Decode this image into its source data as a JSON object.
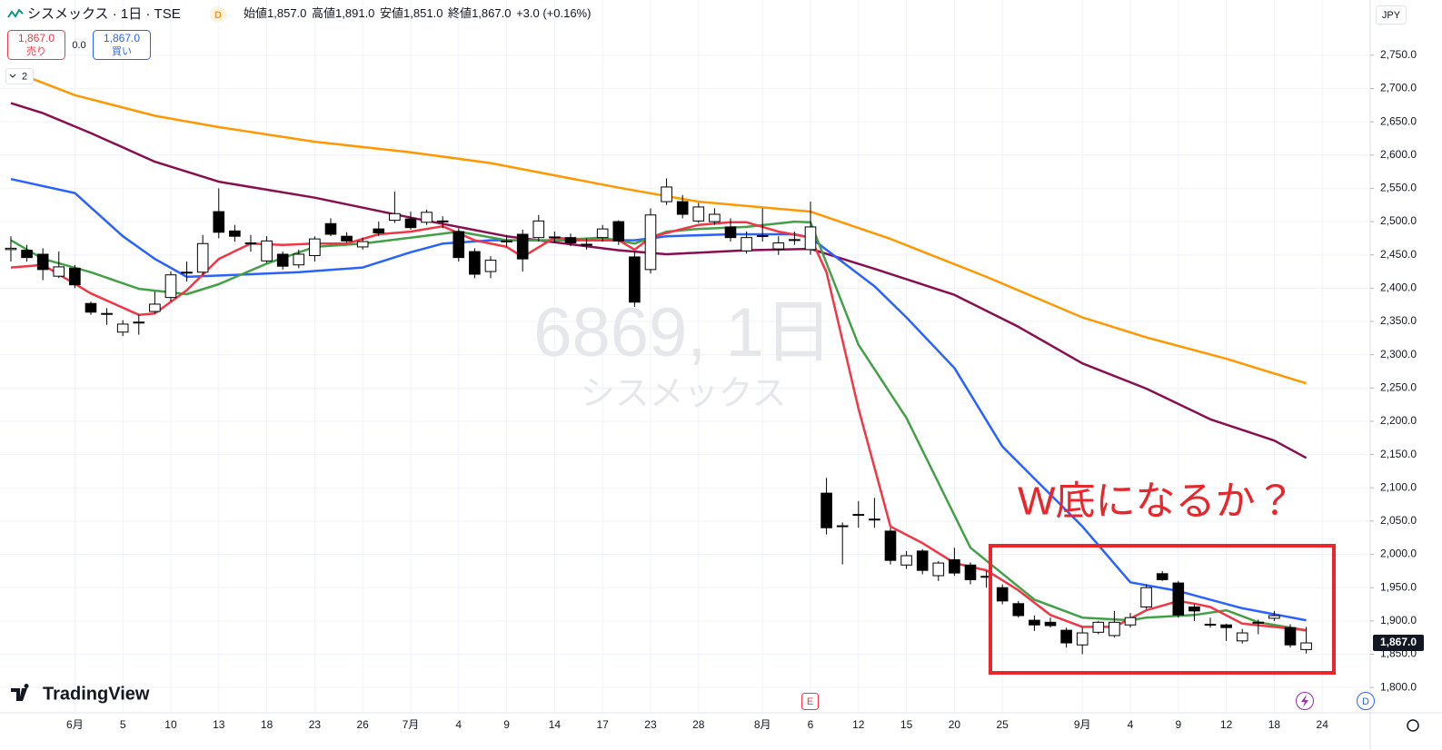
{
  "header": {
    "symbol": "シスメックス · 1日 · TSE",
    "badge": "D",
    "ohlc": [
      {
        "label": "始値",
        "value": "1,857.0"
      },
      {
        "label": "高値",
        "value": "1,891.0"
      },
      {
        "label": "安値",
        "value": "1,851.0"
      },
      {
        "label": "終値",
        "value": "1,867.0"
      }
    ],
    "change": "+3.0 (+0.16%)"
  },
  "trade": {
    "sell_price": "1,867.0",
    "sell": "売り",
    "spread": "0.0",
    "buy_price": "1,867.0",
    "buy": "買い"
  },
  "indicators_toggle": "2",
  "currency": "JPY",
  "watermark": {
    "symbol": "6869, 1日",
    "name": "シスメックス"
  },
  "logo": "TradingView",
  "event_markers": {
    "earnings": "E",
    "dividend": "D"
  },
  "chart_data": {
    "type": "candlestick",
    "annotation": "W底になるか？",
    "up_color": "#ffffff",
    "down_color": "#000000",
    "annotation_color": "#e8262b",
    "grid": true,
    "last_price": {
      "value": 1867,
      "label": "1,867.0"
    },
    "open": [
      2458,
      2457,
      2451,
      2418,
      2430,
      2377,
      2361,
      2334,
      2348,
      2365,
      2386,
      2423,
      2424,
      2515,
      2486,
      2467,
      2441,
      2451,
      2435,
      2449,
      2497,
      2478,
      2462,
      2489,
      2502,
      2504,
      2499,
      2500,
      2485,
      2455,
      2425,
      2470,
      2481,
      2476,
      2476,
      2476,
      2465,
      2476,
      2500,
      2447,
      2428,
      2530,
      2530,
      2501,
      2500,
      2492,
      2456,
      2478,
      2459,
      2472,
      2458,
      2092,
      2042,
      2059,
      2053,
      2035,
      1984,
      2005,
      1968,
      1992,
      1984,
      1966,
      1950,
      1926,
      1901,
      1898,
      1886,
      1864,
      1883,
      1878,
      1894,
      1921,
      1971,
      1957,
      1921,
      1894,
      1894,
      1870,
      1897,
      1904,
      1890,
      1857
    ],
    "high": [
      2478,
      2465,
      2460,
      2455,
      2435,
      2380,
      2370,
      2352,
      2360,
      2395,
      2425,
      2440,
      2480,
      2550,
      2495,
      2480,
      2478,
      2455,
      2458,
      2478,
      2505,
      2484,
      2476,
      2500,
      2545,
      2515,
      2518,
      2508,
      2490,
      2460,
      2448,
      2480,
      2488,
      2510,
      2485,
      2482,
      2475,
      2495,
      2502,
      2455,
      2520,
      2565,
      2540,
      2528,
      2520,
      2505,
      2485,
      2520,
      2478,
      2485,
      2530,
      2115,
      2048,
      2080,
      2085,
      2040,
      2005,
      2008,
      1990,
      2010,
      1988,
      1975,
      1955,
      1930,
      1908,
      1905,
      1890,
      1890,
      1900,
      1915,
      1912,
      1955,
      1975,
      1960,
      1925,
      1905,
      1896,
      1888,
      1902,
      1915,
      1895,
      1891
    ],
    "low": [
      2440,
      2440,
      2412,
      2415,
      2400,
      2360,
      2345,
      2328,
      2330,
      2362,
      2380,
      2410,
      2420,
      2475,
      2470,
      2455,
      2438,
      2428,
      2430,
      2440,
      2478,
      2468,
      2458,
      2478,
      2498,
      2488,
      2495,
      2490,
      2440,
      2415,
      2415,
      2462,
      2425,
      2470,
      2468,
      2463,
      2458,
      2470,
      2465,
      2372,
      2422,
      2525,
      2505,
      2498,
      2495,
      2470,
      2452,
      2470,
      2450,
      2465,
      2450,
      2030,
      1985,
      2040,
      2040,
      1985,
      1978,
      1970,
      1960,
      1968,
      1955,
      1950,
      1925,
      1905,
      1885,
      1890,
      1860,
      1850,
      1880,
      1875,
      1890,
      1918,
      1960,
      1905,
      1900,
      1890,
      1870,
      1866,
      1880,
      1900,
      1860,
      1851
    ],
    "close": [
      2460,
      2446,
      2428,
      2432,
      2405,
      2364,
      2362,
      2346,
      2349,
      2376,
      2420,
      2424,
      2467,
      2484,
      2478,
      2468,
      2471,
      2433,
      2451,
      2474,
      2481,
      2471,
      2470,
      2483,
      2512,
      2491,
      2514,
      2501,
      2446,
      2421,
      2442,
      2471,
      2444,
      2501,
      2477,
      2468,
      2466,
      2489,
      2471,
      2379,
      2510,
      2552,
      2511,
      2522,
      2511,
      2476,
      2476,
      2479,
      2468,
      2473,
      2492,
      2040,
      2043,
      2060,
      2052,
      1991,
      1998,
      1976,
      1987,
      1972,
      1962,
      1967,
      1930,
      1908,
      1894,
      1893,
      1867,
      1882,
      1898,
      1898,
      1905,
      1950,
      1962,
      1909,
      1915,
      1895,
      1890,
      1882,
      1898,
      1908,
      1864,
      1867
    ],
    "moving_averages": [
      {
        "color": "#ff9800",
        "x": [
          0,
          4,
          9,
          13,
          19,
          25,
          30,
          38,
          43,
          50,
          55,
          61,
          67,
          71,
          76,
          81
        ],
        "values": [
          2727,
          2690,
          2659,
          2642,
          2620,
          2604,
          2588,
          2551,
          2530,
          2515,
          2474,
          2417,
          2356,
          2326,
          2294,
          2257
        ]
      },
      {
        "color": "#880e4f",
        "x": [
          0,
          2,
          5,
          9,
          13,
          19,
          25,
          31,
          38,
          41,
          46,
          50,
          54,
          59,
          63,
          67,
          71,
          75,
          79,
          81
        ],
        "values": [
          2678,
          2663,
          2633,
          2590,
          2560,
          2536,
          2506,
          2478,
          2457,
          2451,
          2457,
          2459,
          2429,
          2390,
          2342,
          2287,
          2249,
          2203,
          2171,
          2145
        ]
      },
      {
        "color": "#2962ff",
        "x": [
          0,
          4,
          7,
          9,
          11,
          14,
          18,
          22,
          25,
          27,
          30,
          35,
          39,
          41,
          45,
          49,
          50,
          54,
          56,
          59,
          62,
          67,
          70,
          73,
          77,
          81
        ],
        "values": [
          2564,
          2543,
          2478,
          2444,
          2417,
          2420,
          2424,
          2431,
          2454,
          2467,
          2472,
          2472,
          2472,
          2478,
          2481,
          2481,
          2476,
          2403,
          2356,
          2280,
          2162,
          2042,
          1958,
          1945,
          1919,
          1901
        ]
      },
      {
        "color": "#43a047",
        "x": [
          0,
          2,
          5,
          8,
          11,
          13,
          16,
          19,
          22,
          25,
          28,
          31,
          34,
          37,
          39,
          41,
          43,
          46,
          49,
          50,
          53,
          56,
          60,
          62,
          64,
          67,
          70,
          71,
          74,
          76,
          78,
          81
        ],
        "values": [
          2472,
          2444,
          2424,
          2399,
          2391,
          2406,
          2437,
          2462,
          2467,
          2476,
          2485,
          2472,
          2472,
          2476,
          2467,
          2485,
          2489,
          2492,
          2500,
          2499,
          2315,
          2205,
          2010,
          1971,
          1932,
          1905,
          1901,
          1905,
          1909,
          1916,
          1898,
          1886
        ]
      },
      {
        "color": "#f23645",
        "x": [
          0,
          2,
          5,
          8,
          9,
          11,
          13,
          15,
          17,
          19,
          21,
          23,
          25,
          27,
          29,
          31,
          32,
          34,
          36,
          38,
          39,
          40,
          41,
          43,
          45,
          46,
          48,
          50,
          51,
          53,
          55,
          57,
          59,
          61,
          63,
          65,
          67,
          69,
          71,
          73,
          74,
          75,
          77,
          79,
          81
        ],
        "values": [
          2431,
          2435,
          2392,
          2360,
          2362,
          2397,
          2444,
          2467,
          2465,
          2467,
          2467,
          2481,
          2485,
          2493,
          2472,
          2462,
          2447,
          2476,
          2472,
          2472,
          2458,
          2476,
          2483,
          2495,
          2499,
          2499,
          2485,
          2476,
          2424,
          2219,
          2042,
          2017,
          1987,
          1976,
          1946,
          1909,
          1891,
          1891,
          1916,
          1930,
          1926,
          1921,
          1896,
          1891,
          1886
        ]
      }
    ],
    "xlim": [
      -0.68,
      85
    ],
    "xticks": [
      {
        "value": 4,
        "label": "6月"
      },
      {
        "value": 7,
        "label": "5"
      },
      {
        "value": 10,
        "label": "10"
      },
      {
        "value": 13,
        "label": "13"
      },
      {
        "value": 16,
        "label": "18"
      },
      {
        "value": 19,
        "label": "23"
      },
      {
        "value": 22,
        "label": "26"
      },
      {
        "value": 25,
        "label": "7月"
      },
      {
        "value": 28,
        "label": "4"
      },
      {
        "value": 31,
        "label": "9"
      },
      {
        "value": 34,
        "label": "14"
      },
      {
        "value": 37,
        "label": "17"
      },
      {
        "value": 40,
        "label": "23"
      },
      {
        "value": 43,
        "label": "28"
      },
      {
        "value": 47,
        "label": "8月"
      },
      {
        "value": 50,
        "label": "6"
      },
      {
        "value": 53,
        "label": "12"
      },
      {
        "value": 56,
        "label": "15"
      },
      {
        "value": 59,
        "label": "20"
      },
      {
        "value": 62,
        "label": "25"
      },
      {
        "value": 67,
        "label": "9月"
      },
      {
        "value": 70,
        "label": "4"
      },
      {
        "value": 73,
        "label": "9"
      },
      {
        "value": 76,
        "label": "12"
      },
      {
        "value": 79,
        "label": "18"
      },
      {
        "value": 82,
        "label": "24"
      }
    ],
    "ylim": [
      1762,
      2833
    ],
    "yticks": [
      {
        "value": 1800,
        "label": "1,800.0"
      },
      {
        "value": 1850,
        "label": "1,850.0"
      },
      {
        "value": 1900,
        "label": "1,900.0"
      },
      {
        "value": 1950,
        "label": "1,950.0"
      },
      {
        "value": 2000,
        "label": "2,000.0"
      },
      {
        "value": 2050,
        "label": "2,050.0"
      },
      {
        "value": 2100,
        "label": "2,100.0"
      },
      {
        "value": 2150,
        "label": "2,150.0"
      },
      {
        "value": 2200,
        "label": "2,200.0"
      },
      {
        "value": 2250,
        "label": "2,250.0"
      },
      {
        "value": 2300,
        "label": "2,300.0"
      },
      {
        "value": 2350,
        "label": "2,350.0"
      },
      {
        "value": 2400,
        "label": "2,400.0"
      },
      {
        "value": 2450,
        "label": "2,450.0"
      },
      {
        "value": 2500,
        "label": "2,500.0"
      },
      {
        "value": 2550,
        "label": "2,550.0"
      },
      {
        "value": 2600,
        "label": "2,600.0"
      },
      {
        "value": 2650,
        "label": "2,650.0"
      },
      {
        "value": 2700,
        "label": "2,700.0"
      },
      {
        "value": 2750,
        "label": "2,750.0"
      }
    ]
  }
}
